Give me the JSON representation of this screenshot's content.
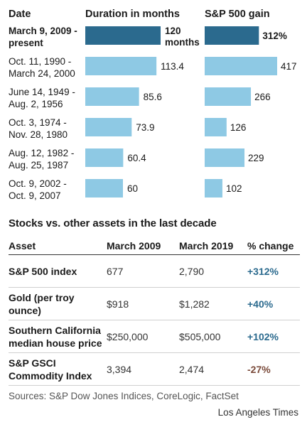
{
  "chart_data": {
    "type": "bar",
    "headers": {
      "date": "Date",
      "duration": "Duration in months",
      "gain": "S&P 500 gain"
    },
    "rows": [
      {
        "date_line1": "March 9, 2009 -",
        "date_line2": "present",
        "duration": 120,
        "duration_label_line1": "120",
        "duration_label_line2": "months",
        "gain": 312,
        "gain_label": "312%",
        "highlight": true
      },
      {
        "date_line1": "Oct. 11, 1990 -",
        "date_line2": "March 24, 2000",
        "duration": 113.4,
        "duration_label_line1": "113.4",
        "duration_label_line2": "",
        "gain": 417,
        "gain_label": "417",
        "highlight": false
      },
      {
        "date_line1": "June 14, 1949 -",
        "date_line2": "Aug. 2, 1956",
        "duration": 85.6,
        "duration_label_line1": "85.6",
        "duration_label_line2": "",
        "gain": 266,
        "gain_label": "266",
        "highlight": false
      },
      {
        "date_line1": "Oct. 3, 1974 -",
        "date_line2": "Nov. 28, 1980",
        "duration": 73.9,
        "duration_label_line1": "73.9",
        "duration_label_line2": "",
        "gain": 126,
        "gain_label": "126",
        "highlight": false
      },
      {
        "date_line1": "Aug. 12, 1982 -",
        "date_line2": "Aug. 25, 1987",
        "duration": 60.4,
        "duration_label_line1": "60.4",
        "duration_label_line2": "",
        "gain": 229,
        "gain_label": "229",
        "highlight": false
      },
      {
        "date_line1": "Oct. 9, 2002 -",
        "date_line2": "Oct. 9, 2007",
        "duration": 60,
        "duration_label_line1": "60",
        "duration_label_line2": "",
        "gain": 102,
        "gain_label": "102",
        "highlight": false
      }
    ],
    "colors": {
      "highlight": "#2b6a8e",
      "normal": "#8ec9e4",
      "positive": "#2b6a8e",
      "negative": "#7a4a3a"
    }
  },
  "assets_table": {
    "title": "Stocks vs. other assets in the last decade",
    "columns": [
      "Asset",
      "March 2009",
      "March 2019",
      "% change"
    ],
    "rows": [
      {
        "asset_line1": "S&P 500 index",
        "asset_line2": "",
        "march_2009": "677",
        "march_2019": "2,790",
        "change": "+312%",
        "change_sign": "positive"
      },
      {
        "asset_line1": "Gold (per troy",
        "asset_line2": "ounce)",
        "march_2009": "$918",
        "march_2019": "$1,282",
        "change": "+40%",
        "change_sign": "positive"
      },
      {
        "asset_line1": "Southern California",
        "asset_line2": "median house price",
        "march_2009": "$250,000",
        "march_2019": "$505,000",
        "change": "+102%",
        "change_sign": "positive"
      },
      {
        "asset_line1": "S&P GSCI",
        "asset_line2": "Commodity Index",
        "march_2009": "3,394",
        "march_2019": "2,474",
        "change": "-27%",
        "change_sign": "negative"
      }
    ]
  },
  "footer": {
    "sources": "Sources: S&P Dow Jones Indices, CoreLogic, FactSet",
    "credit": "Los Angeles Times"
  }
}
